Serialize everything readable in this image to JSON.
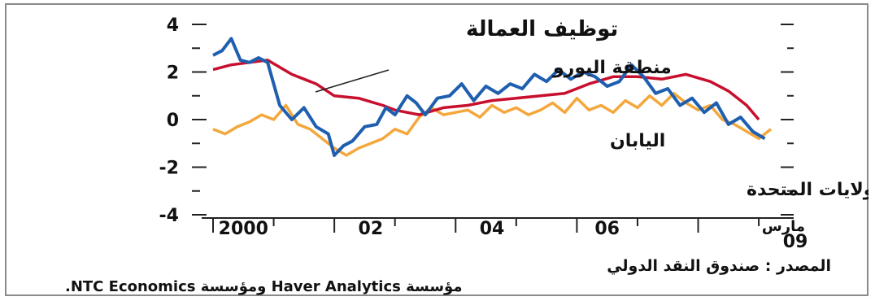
{
  "chart_data": {
    "type": "line",
    "title": "توظيف العمالة",
    "ylim": [
      -4,
      4
    ],
    "y_ticks": [
      "4",
      "2",
      "0",
      "-2",
      "-4"
    ],
    "x_tick_labels": [
      "2000",
      "02",
      "04",
      "06"
    ],
    "x_end_label": [
      "مارس",
      "09"
    ],
    "grid": false,
    "series": [
      {
        "name": "منطقة اليورو",
        "color": "#c8102e",
        "x": [
          2000.0,
          2000.3,
          2000.9,
          2001.3,
          2001.7,
          2002.0,
          2002.4,
          2002.8,
          2003.0,
          2003.4,
          2003.8,
          2004.2,
          2004.6,
          2005.0,
          2005.4,
          2005.8,
          2006.2,
          2006.6,
          2007.0,
          2007.4,
          2007.8,
          2008.2,
          2008.5,
          2008.8,
          2009.0
        ],
        "values": [
          2.1,
          2.3,
          2.5,
          1.9,
          1.5,
          1.0,
          0.9,
          0.6,
          0.4,
          0.2,
          0.5,
          0.6,
          0.8,
          0.9,
          1.0,
          1.1,
          1.5,
          1.8,
          1.8,
          1.7,
          1.9,
          1.6,
          1.2,
          0.6,
          0.0
        ]
      },
      {
        "name": "الولايات المتحدة",
        "color": "#1f5fb0",
        "x": [
          2000.0,
          2000.15,
          2000.3,
          2000.45,
          2000.6,
          2000.75,
          2000.9,
          2001.1,
          2001.3,
          2001.5,
          2001.7,
          2001.9,
          2002.0,
          2002.15,
          2002.3,
          2002.5,
          2002.7,
          2002.85,
          2003.0,
          2003.2,
          2003.35,
          2003.5,
          2003.7,
          2003.9,
          2004.1,
          2004.3,
          2004.5,
          2004.7,
          2004.9,
          2005.1,
          2005.3,
          2005.5,
          2005.7,
          2005.9,
          2006.1,
          2006.3,
          2006.5,
          2006.7,
          2006.9,
          2007.1,
          2007.3,
          2007.5,
          2007.7,
          2007.9,
          2008.1,
          2008.3,
          2008.5,
          2008.7,
          2008.9,
          2009.1
        ],
        "values": [
          2.7,
          2.9,
          3.4,
          2.5,
          2.4,
          2.6,
          2.4,
          0.6,
          0.0,
          0.5,
          -0.3,
          -0.6,
          -1.5,
          -1.1,
          -0.9,
          -0.3,
          -0.2,
          0.5,
          0.2,
          1.0,
          0.7,
          0.2,
          0.9,
          1.0,
          1.5,
          0.8,
          1.4,
          1.1,
          1.5,
          1.3,
          1.9,
          1.6,
          2.1,
          1.7,
          2.0,
          1.8,
          1.4,
          1.6,
          2.3,
          1.8,
          1.1,
          1.3,
          0.6,
          0.9,
          0.3,
          0.7,
          -0.2,
          0.1,
          -0.5,
          -0.8
        ]
      },
      {
        "name": "اليابان",
        "color": "#f4a73b",
        "x": [
          2000.0,
          2000.2,
          2000.4,
          2000.6,
          2000.8,
          2001.0,
          2001.2,
          2001.4,
          2001.6,
          2001.8,
          2002.0,
          2002.2,
          2002.4,
          2002.6,
          2002.8,
          2003.0,
          2003.2,
          2003.4,
          2003.6,
          2003.8,
          2004.0,
          2004.2,
          2004.4,
          2004.6,
          2004.8,
          2005.0,
          2005.2,
          2005.4,
          2005.6,
          2005.8,
          2006.0,
          2006.2,
          2006.4,
          2006.6,
          2006.8,
          2007.0,
          2007.2,
          2007.4,
          2007.6,
          2007.8,
          2008.0,
          2008.2,
          2008.4,
          2008.6,
          2008.8,
          2009.0,
          2009.2
        ],
        "values": [
          -0.4,
          -0.6,
          -0.3,
          -0.1,
          0.2,
          0.0,
          0.6,
          -0.2,
          -0.4,
          -0.8,
          -1.2,
          -1.5,
          -1.2,
          -1.0,
          -0.8,
          -0.4,
          -0.6,
          0.1,
          0.5,
          0.2,
          0.3,
          0.4,
          0.1,
          0.6,
          0.3,
          0.5,
          0.2,
          0.4,
          0.7,
          0.3,
          0.9,
          0.4,
          0.6,
          0.3,
          0.8,
          0.5,
          1.0,
          0.6,
          1.1,
          0.7,
          0.4,
          0.6,
          0.0,
          -0.2,
          -0.5,
          -0.8,
          -0.4
        ]
      }
    ]
  },
  "footer": {
    "source": "المصدر : صندوق النقد الدولي",
    "credit": "مؤسسة Haver Analytics ومؤسسة NTC Economics."
  }
}
